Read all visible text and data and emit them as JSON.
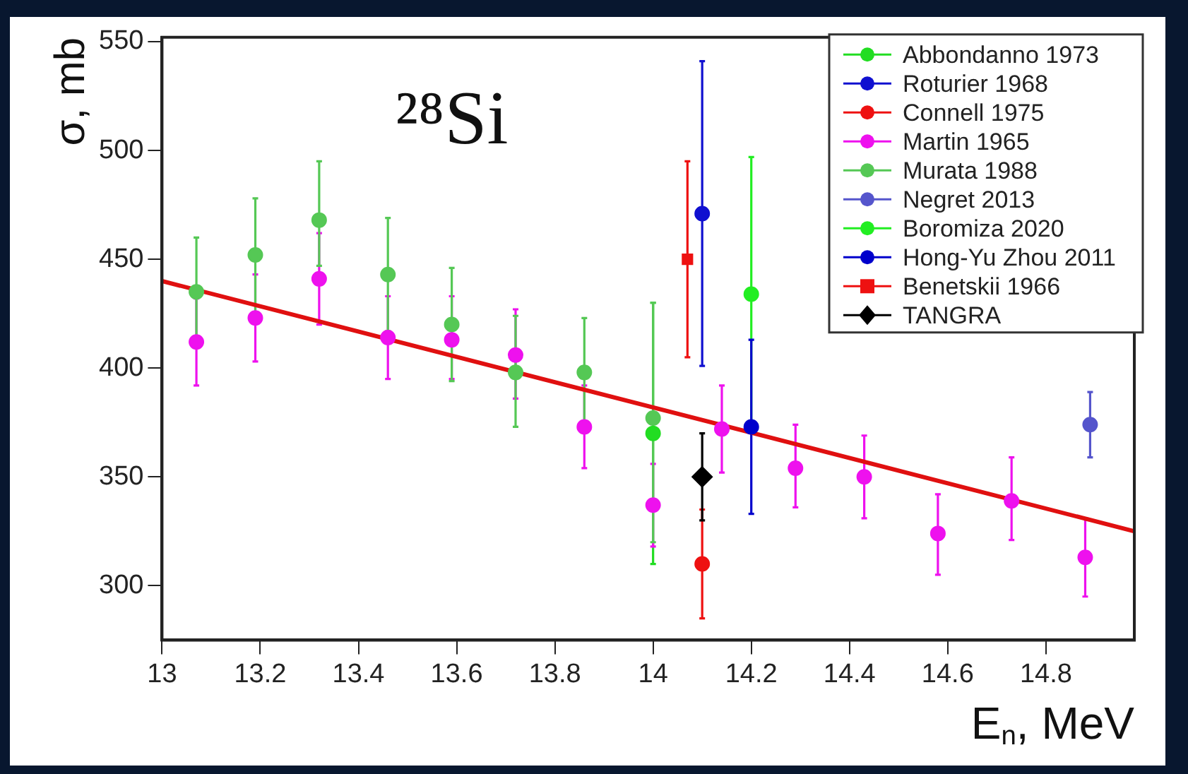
{
  "chart_data": {
    "type": "scatter",
    "title": "²⁸Si",
    "xlabel": "E$_{n}$, MeV",
    "ylabel": "σ, mb",
    "xlim": [
      13,
      14.98
    ],
    "xticks": [
      13,
      13.2,
      13.4,
      13.6,
      13.8,
      14,
      14.2,
      14.4,
      14.6,
      14.8
    ],
    "ylim": [
      275,
      552
    ],
    "yticks": [
      300,
      350,
      400,
      450,
      500,
      550
    ],
    "grid": false,
    "legend": "top right",
    "series": [
      {
        "name": "Abbondanno 1973",
        "color": "#22dd22",
        "marker": "circle",
        "x": [
          14.0
        ],
        "values": [
          370
        ],
        "errors": [
          [
            310,
            430
          ]
        ]
      },
      {
        "name": "Roturier 1968",
        "color": "#1010d0",
        "marker": "circle",
        "x": [
          14.1
        ],
        "values": [
          471
        ],
        "errors": [
          [
            401,
            541
          ]
        ]
      },
      {
        "name": "Connell 1975",
        "color": "#ee1111",
        "marker": "circle",
        "x": [
          14.1
        ],
        "values": [
          310
        ],
        "errors": [
          [
            285,
            335
          ]
        ]
      },
      {
        "name": "Martin 1965",
        "color": "#ee11ee",
        "marker": "circle",
        "x": [
          13.07,
          13.19,
          13.32,
          13.46,
          13.59,
          13.72,
          13.86,
          14.0,
          14.14,
          14.29,
          14.43,
          14.58,
          14.73,
          14.88
        ],
        "values": [
          412,
          423,
          441,
          414,
          413,
          406,
          373,
          337,
          372,
          354,
          350,
          324,
          339,
          313
        ],
        "errors": [
          [
            392,
            432
          ],
          [
            403,
            443
          ],
          [
            420,
            462
          ],
          [
            395,
            433
          ],
          [
            395,
            433
          ],
          [
            386,
            427
          ],
          [
            354,
            392
          ],
          [
            318,
            356
          ],
          [
            352,
            392
          ],
          [
            336,
            374
          ],
          [
            331,
            369
          ],
          [
            305,
            342
          ],
          [
            321,
            359
          ],
          [
            295,
            331
          ]
        ]
      },
      {
        "name": "Murata 1988",
        "color": "#55c855",
        "marker": "circle",
        "x": [
          13.07,
          13.19,
          13.32,
          13.46,
          13.59,
          13.72,
          13.86,
          14.0
        ],
        "values": [
          435,
          452,
          468,
          443,
          420,
          398,
          398,
          377
        ],
        "errors": [
          [
            410,
            460
          ],
          [
            425,
            478
          ],
          [
            447,
            495
          ],
          [
            417,
            469
          ],
          [
            394,
            446
          ],
          [
            373,
            424
          ],
          [
            374,
            423
          ],
          [
            320,
            430
          ]
        ]
      },
      {
        "name": "Negret 2013",
        "color": "#5555cc",
        "marker": "circle",
        "x": [
          14.89
        ],
        "values": [
          374
        ],
        "errors": [
          [
            359,
            389
          ]
        ]
      },
      {
        "name": "Boromiza 2020",
        "color": "#22ee22",
        "marker": "circle",
        "x": [
          14.2
        ],
        "values": [
          434
        ],
        "errors": [
          [
            374,
            497
          ]
        ]
      },
      {
        "name": "Hong-Yu Zhou 2011",
        "color": "#0000cc",
        "marker": "circle",
        "x": [
          14.2
        ],
        "values": [
          373
        ],
        "errors": [
          [
            333,
            413
          ]
        ]
      },
      {
        "name": "Benetskii 1966",
        "color": "#ee1111",
        "marker": "square",
        "x": [
          14.07
        ],
        "values": [
          450
        ],
        "errors": [
          [
            405,
            495
          ]
        ]
      },
      {
        "name": "TANGRA",
        "color": "#000000",
        "marker": "diamond",
        "x": [
          14.1
        ],
        "values": [
          350
        ],
        "errors": [
          [
            330,
            370
          ]
        ]
      },
      {
        "type": "line",
        "color": "#e01010",
        "marker": "none",
        "x": [
          13,
          14.98
        ],
        "values": [
          440,
          325
        ]
      }
    ]
  }
}
